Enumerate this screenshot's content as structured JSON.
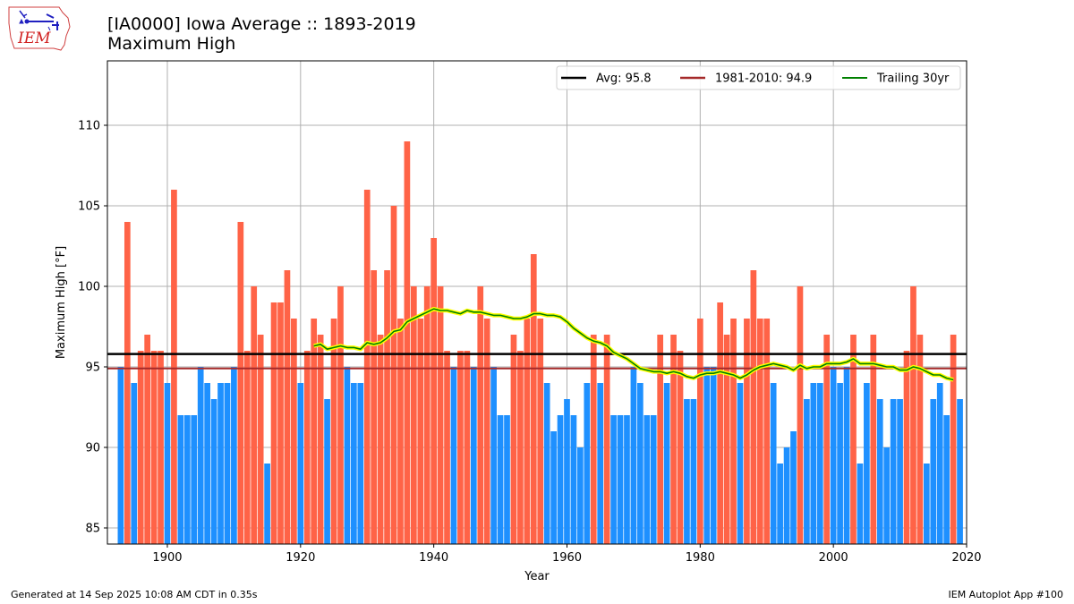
{
  "header": {
    "logo_text": "IEM",
    "title_line1": "[IA0000] Iowa Average :: 1893-2019",
    "title_line2": "Maximum High"
  },
  "footer": {
    "left": "Generated at 14 Sep 2025 10:08 AM CDT in 0.35s",
    "right": "IEM Autoplot App #100"
  },
  "colors": {
    "above": "#ff6347",
    "below": "#1e90ff",
    "avg_line": "#000000",
    "climo_line": "#a52a2a",
    "trailing": "#008000",
    "trailing_glow": "#ffff00"
  },
  "chart_data": {
    "type": "bar",
    "xlabel": "Year",
    "ylabel": "Maximum High [°F]",
    "xlim": [
      1891,
      2020
    ],
    "ylim": [
      84,
      114
    ],
    "xticks": [
      1900,
      1920,
      1940,
      1960,
      1980,
      2000,
      2020
    ],
    "yticks": [
      85,
      90,
      95,
      100,
      105,
      110
    ],
    "grid": true,
    "legend_position": "top-right",
    "legend": [
      {
        "label": "Avg: 95.8",
        "color": "#000000"
      },
      {
        "label": "1981-2010: 94.9",
        "color": "#a52a2a"
      },
      {
        "label": "Trailing 30yr",
        "color": "#008000"
      }
    ],
    "avg": 95.8,
    "climo_1981_2010": 94.9,
    "years_start": 1893,
    "values": [
      95,
      104,
      94,
      96,
      97,
      96,
      96,
      94,
      106,
      92,
      92,
      92,
      95,
      94,
      93,
      94,
      94,
      95,
      104,
      96,
      100,
      97,
      89,
      99,
      99,
      101,
      98,
      94,
      96,
      98,
      97,
      93,
      98,
      100,
      95,
      94,
      94,
      106,
      101,
      97,
      101,
      105,
      98,
      109,
      100,
      98,
      100,
      103,
      100,
      96,
      95,
      96,
      96,
      95,
      100,
      98,
      95,
      92,
      92,
      97,
      96,
      98,
      102,
      98,
      94,
      91,
      92,
      93,
      92,
      90,
      94,
      97,
      94,
      97,
      92,
      92,
      92,
      95,
      94,
      92,
      92,
      97,
      94,
      97,
      96,
      93,
      93,
      98,
      95,
      95,
      99,
      97,
      98,
      94,
      98,
      101,
      98,
      98,
      94,
      89,
      90,
      91,
      100,
      93,
      94,
      94,
      97,
      95,
      94,
      95,
      97,
      89,
      94,
      97,
      93,
      90,
      93,
      93,
      96,
      100,
      97,
      89,
      93,
      94,
      92,
      97,
      93
    ],
    "trailing_30yr": {
      "start_year": 1922,
      "values": [
        96.3,
        96.4,
        96.1,
        96.2,
        96.3,
        96.2,
        96.2,
        96.1,
        96.5,
        96.4,
        96.5,
        96.8,
        97.2,
        97.3,
        97.8,
        98.0,
        98.2,
        98.4,
        98.6,
        98.5,
        98.5,
        98.4,
        98.3,
        98.5,
        98.4,
        98.4,
        98.3,
        98.2,
        98.2,
        98.1,
        98.0,
        98.0,
        98.1,
        98.3,
        98.3,
        98.2,
        98.2,
        98.1,
        97.8,
        97.4,
        97.1,
        96.8,
        96.6,
        96.5,
        96.3,
        95.9,
        95.7,
        95.5,
        95.2,
        94.9,
        94.8,
        94.7,
        94.7,
        94.6,
        94.7,
        94.6,
        94.4,
        94.3,
        94.5,
        94.6,
        94.6,
        94.7,
        94.6,
        94.5,
        94.3,
        94.5,
        94.8,
        95.0,
        95.1,
        95.2,
        95.1,
        95.0,
        94.8,
        95.1,
        94.9,
        95.0,
        95.0,
        95.2,
        95.2,
        95.2,
        95.3,
        95.5,
        95.2,
        95.2,
        95.2,
        95.1,
        95.0,
        95.0,
        94.8,
        94.8,
        95.0,
        94.9,
        94.7,
        94.5,
        94.5,
        94.3,
        94.2
      ]
    }
  }
}
